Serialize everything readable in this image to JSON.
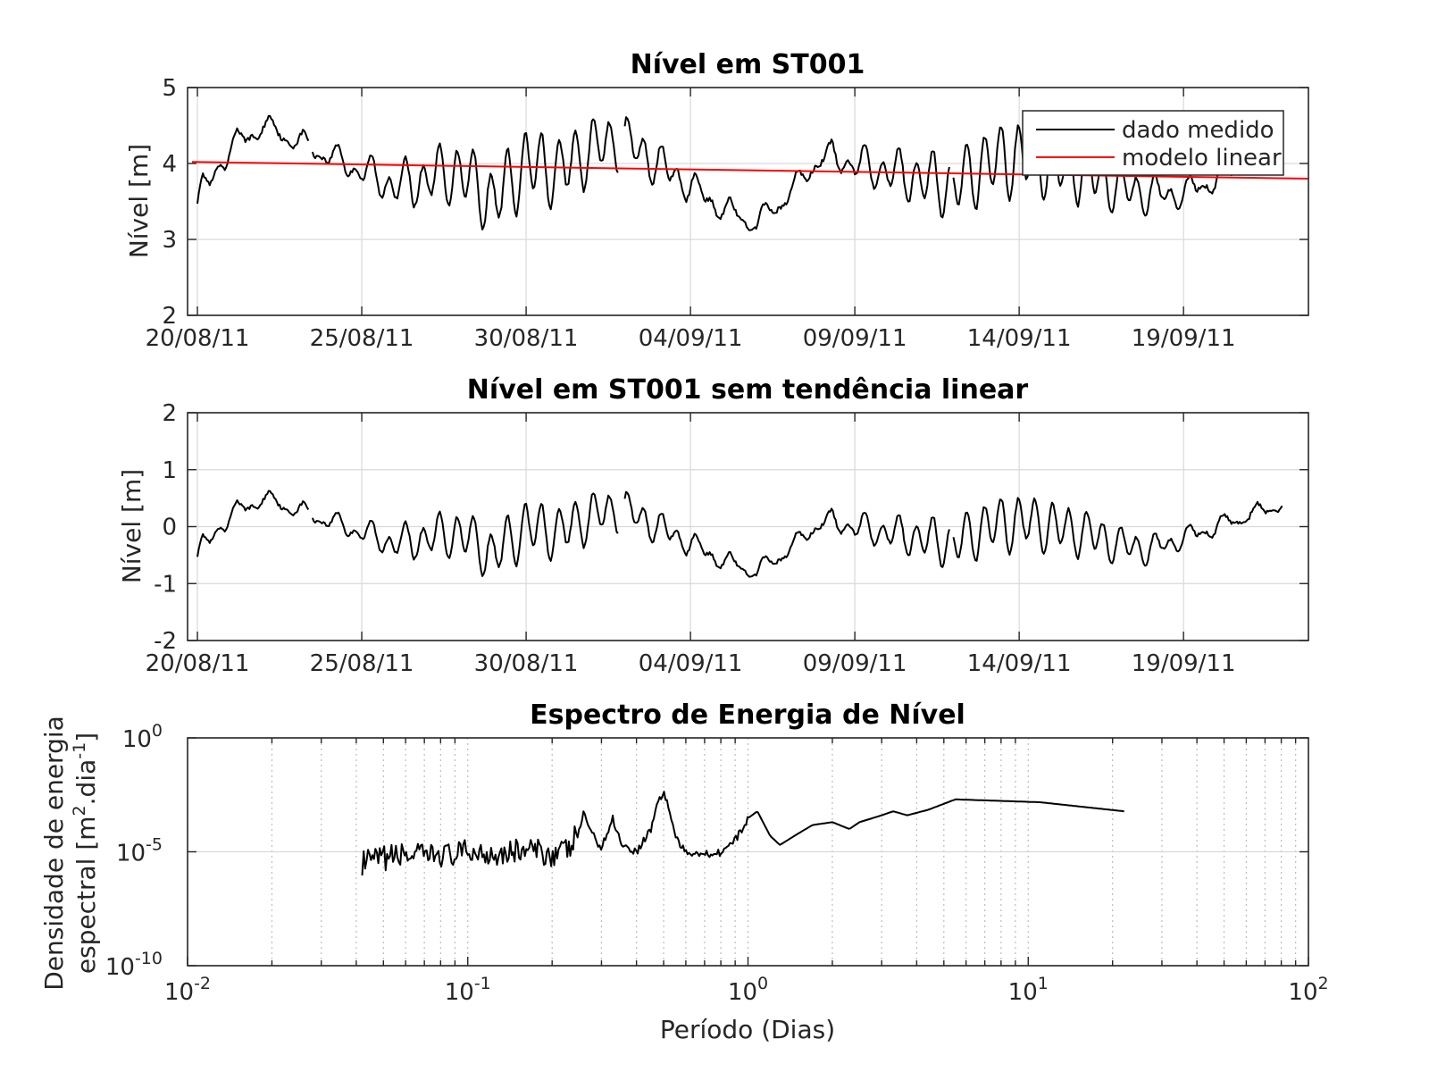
{
  "chart_data": [
    {
      "type": "line",
      "title": "Nível em ST001",
      "xlabel": "",
      "ylabel": "Nível [m]",
      "x_range": [
        "2011-08-20",
        "2011-09-22"
      ],
      "ylim": [
        2,
        5
      ],
      "yticks": [
        2,
        3,
        4,
        5
      ],
      "xtick_labels": [
        "20/08/11",
        "25/08/11",
        "30/08/11",
        "04/09/11",
        "09/09/11",
        "14/09/11",
        "19/09/11"
      ],
      "grid": true,
      "legend": {
        "placement": "top-right",
        "entries": [
          "dado medido",
          "modelo linear"
        ]
      },
      "series": [
        {
          "name": "dado medido",
          "color": "#000000",
          "x": [
            "2011-08-20",
            "2011-08-21",
            "2011-08-22",
            "2011-08-23",
            "2011-08-24",
            "2011-08-25",
            "2011-08-26",
            "2011-08-27",
            "2011-08-28",
            "2011-08-29",
            "2011-08-30",
            "2011-08-31",
            "2011-09-01",
            "2011-09-02",
            "2011-09-03",
            "2011-09-04",
            "2011-09-05",
            "2011-09-06",
            "2011-09-07",
            "2011-09-08",
            "2011-09-09",
            "2011-09-10",
            "2011-09-11",
            "2011-09-12",
            "2011-09-13",
            "2011-09-14",
            "2011-09-15",
            "2011-09-16",
            "2011-09-17",
            "2011-09-18",
            "2011-09-19",
            "2011-09-20",
            "2011-09-21",
            "2011-09-22"
          ],
          "values": [
            3.5,
            4.2,
            4.5,
            4.3,
            4.1,
            3.9,
            3.7,
            3.8,
            3.9,
            3.5,
            4.0,
            3.9,
            4.2,
            4.3,
            4.0,
            3.7,
            3.4,
            3.2,
            3.6,
            4.1,
            4.0,
            3.9,
            3.8,
            3.7,
            4.0,
            4.1,
            4.0,
            3.9,
            3.7,
            3.6,
            3.6,
            3.8,
            4.0,
            4.3
          ]
        },
        {
          "name": "modelo linear",
          "color": "#ff0000",
          "x": [
            "2011-08-20",
            "2011-09-22"
          ],
          "values": [
            4.02,
            3.8
          ]
        }
      ]
    },
    {
      "type": "line",
      "title": "Nível em ST001 sem tendência linear",
      "xlabel": "",
      "ylabel": "Nível [m]",
      "x_range": [
        "2011-08-20",
        "2011-09-22"
      ],
      "ylim": [
        -2,
        2
      ],
      "yticks": [
        -2,
        -1,
        0,
        1,
        2
      ],
      "xtick_labels": [
        "20/08/11",
        "25/08/11",
        "30/08/11",
        "04/09/11",
        "09/09/11",
        "14/09/11",
        "19/09/11"
      ],
      "grid": true,
      "series": [
        {
          "color": "#000000",
          "x": [
            "2011-08-20",
            "2011-08-21",
            "2011-08-22",
            "2011-08-23",
            "2011-08-24",
            "2011-08-25",
            "2011-08-26",
            "2011-08-27",
            "2011-08-28",
            "2011-08-29",
            "2011-08-30",
            "2011-08-31",
            "2011-09-01",
            "2011-09-02",
            "2011-09-03",
            "2011-09-04",
            "2011-09-05",
            "2011-09-06",
            "2011-09-07",
            "2011-09-08",
            "2011-09-09",
            "2011-09-10",
            "2011-09-11",
            "2011-09-12",
            "2011-09-13",
            "2011-09-14",
            "2011-09-15",
            "2011-09-16",
            "2011-09-17",
            "2011-09-18",
            "2011-09-19",
            "2011-09-20",
            "2011-09-21",
            "2011-09-22"
          ],
          "values": [
            -0.5,
            0.2,
            0.5,
            0.3,
            0.1,
            -0.1,
            -0.3,
            -0.2,
            -0.1,
            -0.5,
            0.0,
            -0.1,
            0.2,
            0.3,
            0.0,
            -0.3,
            -0.6,
            -0.8,
            -0.4,
            0.1,
            0.0,
            -0.1,
            -0.2,
            -0.3,
            0.0,
            0.1,
            0.0,
            -0.1,
            -0.3,
            -0.4,
            -0.2,
            0.0,
            0.2,
            0.4
          ]
        }
      ]
    },
    {
      "type": "line",
      "title": "Espectro de Energia de Nível",
      "xlabel": "Período (Dias)",
      "ylabel_lines": [
        "Densidade de energia",
        "espectral [m",
        "2",
        ".dia",
        "-1",
        "]"
      ],
      "xscale": "log",
      "yscale": "log",
      "xlim": [
        0.01,
        100
      ],
      "ylim": [
        1e-10,
        1
      ],
      "xtick_exponents": [
        "-2",
        "-1",
        "0",
        "1",
        "2"
      ],
      "ytick_exponents": [
        "0",
        "-5",
        "-10"
      ],
      "tick_base": "10",
      "grid": true,
      "series": [
        {
          "color": "#000000",
          "x": [
            0.042,
            0.05,
            0.06,
            0.07,
            0.08,
            0.09,
            0.1,
            0.12,
            0.14,
            0.16,
            0.18,
            0.2,
            0.23,
            0.25,
            0.26,
            0.28,
            0.3,
            0.33,
            0.35,
            0.37,
            0.4,
            0.45,
            0.48,
            0.5,
            0.52,
            0.55,
            0.6,
            0.65,
            0.7,
            0.8,
            0.9,
            1.0,
            1.08,
            1.2,
            1.3,
            1.5,
            1.7,
            2.0,
            2.3,
            2.5,
            3.0,
            3.3,
            3.7,
            4.4,
            5.5,
            11.0,
            22.0
          ],
          "values": [
            3e-06,
            5e-06,
            8e-06,
            6e-06,
            8e-06,
            7e-06,
            1e-05,
            9e-06,
            1e-05,
            1.2e-05,
            1e-05,
            8e-06,
            1.2e-05,
            0.0001,
            0.0005,
            5e-05,
            1.5e-05,
            0.0003,
            3e-05,
            1.5e-05,
            1e-05,
            0.0001,
            0.002,
            0.004,
            0.001,
            5e-05,
            8e-06,
            1e-05,
            8e-06,
            1e-05,
            3e-05,
            0.0003,
            0.0006,
            5e-05,
            2e-05,
            6e-05,
            0.00015,
            0.0002,
            0.0001,
            0.0002,
            0.0004,
            0.0006,
            0.0004,
            0.0007,
            0.002,
            0.0015,
            0.0006
          ]
        }
      ]
    }
  ]
}
